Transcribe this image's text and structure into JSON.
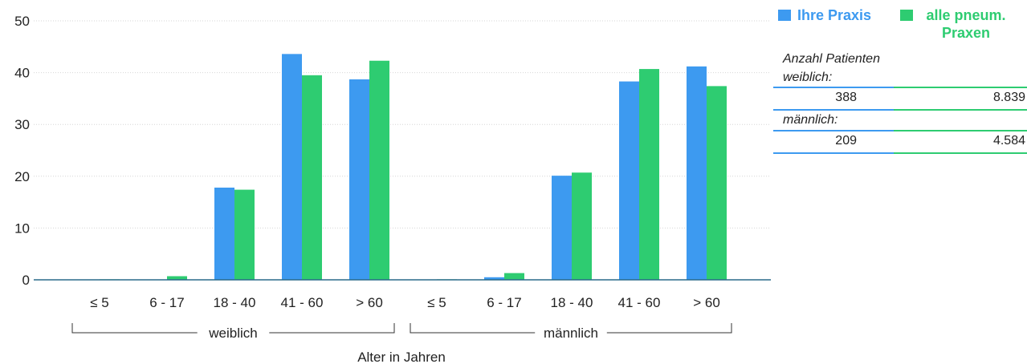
{
  "chart_data": {
    "type": "bar",
    "categories": [
      "≤ 5",
      "6 - 17",
      "18 - 40",
      "41 - 60",
      "> 60",
      "≤ 5",
      "6 - 17",
      "18 - 40",
      "41 - 60",
      "> 60"
    ],
    "groups": [
      {
        "label": "weiblich",
        "categories": [
          "≤ 5",
          "6 - 17",
          "18 - 40",
          "41 - 60",
          "> 60"
        ]
      },
      {
        "label": "männlich",
        "categories": [
          "≤ 5",
          "6 - 17",
          "18 - 40",
          "41 - 60",
          "> 60"
        ]
      }
    ],
    "series": [
      {
        "name": "Ihre Praxis",
        "color": "#3d9af0",
        "values": [
          0,
          0,
          17.8,
          43.6,
          38.7,
          0,
          0.5,
          20.1,
          38.3,
          41.2
        ]
      },
      {
        "name": "alle pneum. Praxen",
        "color": "#2ecc71",
        "values": [
          0.1,
          0.7,
          17.4,
          39.5,
          42.3,
          0.1,
          1.3,
          20.7,
          40.7,
          37.4
        ]
      }
    ],
    "xlabel": "Alter in Jahren",
    "ylabel": "",
    "ylim": [
      0,
      50
    ],
    "yticks": [
      0,
      10,
      20,
      30,
      40,
      50
    ],
    "grid": true,
    "legend_position": "top-right"
  },
  "legend": {
    "item1": "Ihre Praxis",
    "item2": "alle pneum. Praxen",
    "color1": "#3d9af0",
    "color2": "#2ecc71"
  },
  "stats": {
    "label_line1": "Anzahl Patienten",
    "label_weiblich": "weiblich:",
    "weiblich_praxis": "388",
    "weiblich_alle": "8.839",
    "label_maennlich": "männlich:",
    "maennlich_praxis": "209",
    "maennlich_alle": "4.584"
  }
}
